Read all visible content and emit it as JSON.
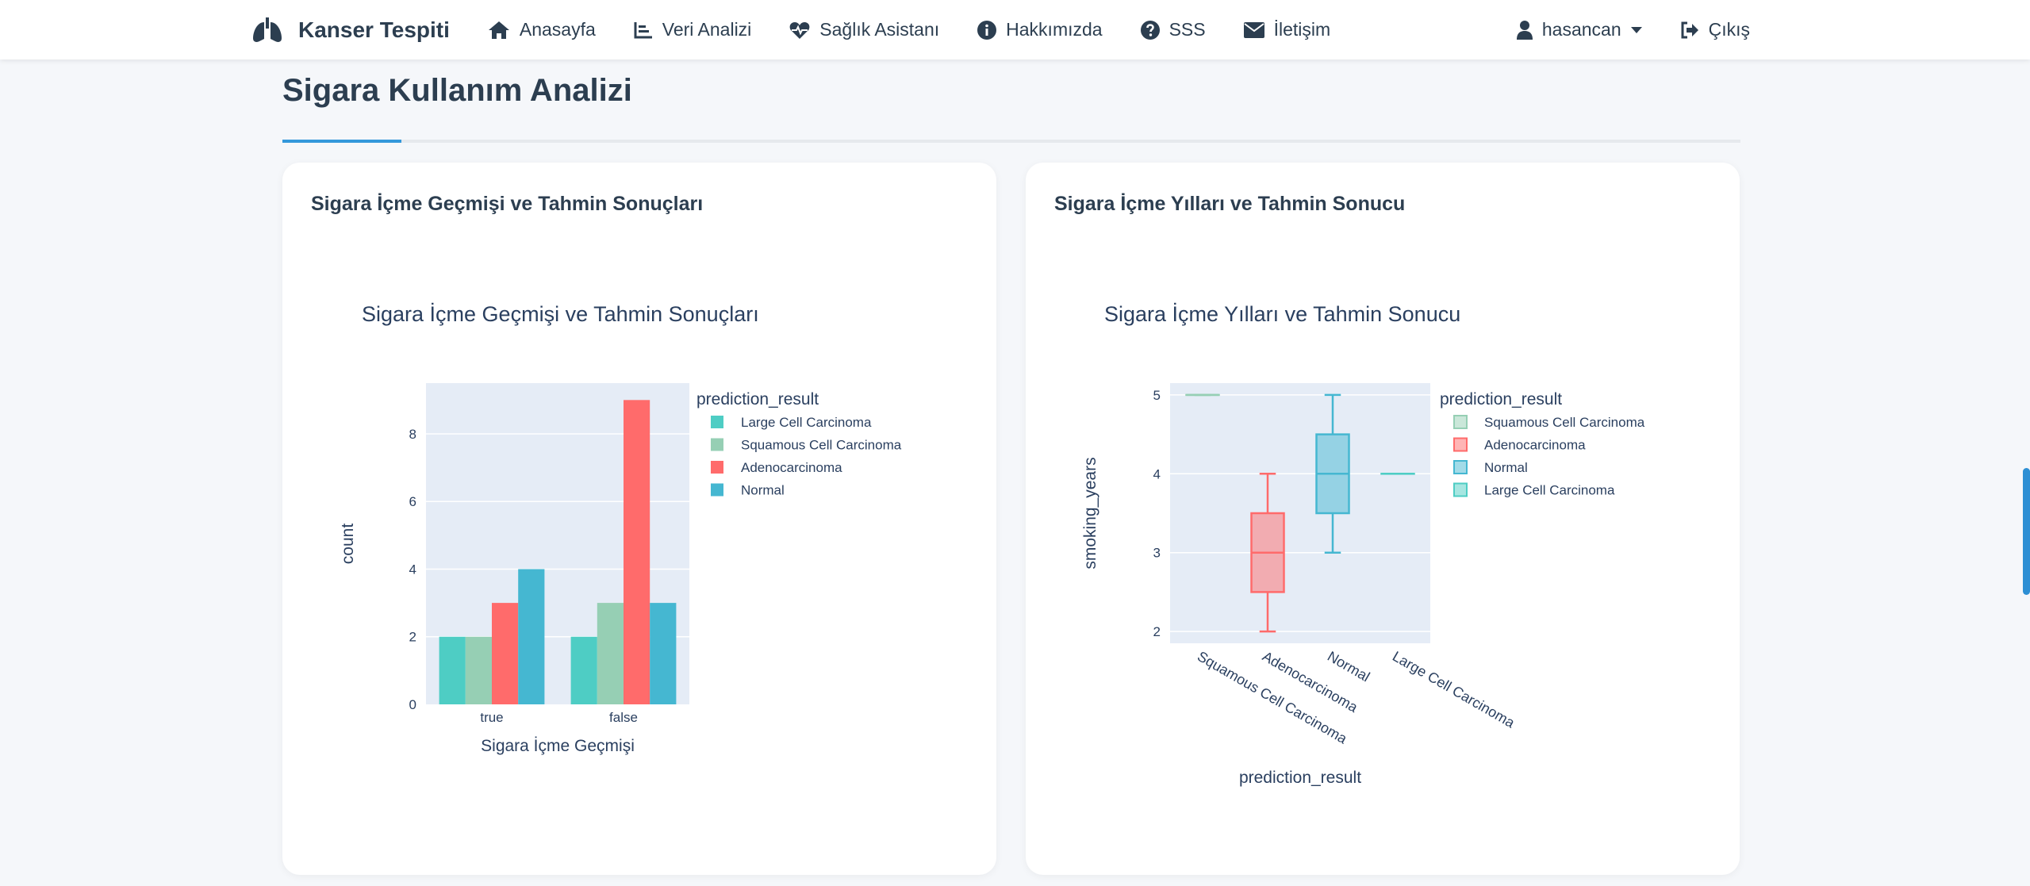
{
  "nav": {
    "brand": "Kanser Tespiti",
    "items": [
      {
        "label": "Anasayfa",
        "icon": "home-icon"
      },
      {
        "label": "Veri Analizi",
        "icon": "chart-line-icon"
      },
      {
        "label": "Sağlık Asistanı",
        "icon": "heart-pulse-icon"
      },
      {
        "label": "Hakkımızda",
        "icon": "info-icon"
      },
      {
        "label": "SSS",
        "icon": "question-icon"
      },
      {
        "label": "İletişim",
        "icon": "envelope-icon"
      }
    ],
    "user": "hasancan",
    "logout": "Çıkış"
  },
  "page": {
    "title": "Sigara Kullanım Analizi"
  },
  "cards": [
    {
      "header": "Sigara İçme Geçmişi ve Tahmin Sonuçları"
    },
    {
      "header": "Sigara İçme Yılları ve Tahmin Sonucu"
    }
  ],
  "chart_data": [
    {
      "type": "bar",
      "title": "Sigara İçme Geçmişi ve Tahmin Sonuçları",
      "xlabel": "Sigara İçme Geçmişi",
      "ylabel": "count",
      "categories": [
        "true",
        "false"
      ],
      "ylim": [
        0,
        9.5
      ],
      "yticks": [
        0,
        2,
        4,
        6,
        8
      ],
      "legend_title": "prediction_result",
      "legend_position": "right",
      "grid": true,
      "series": [
        {
          "name": "Large Cell Carcinoma",
          "values": [
            2,
            2
          ],
          "color": "#4ecdc4"
        },
        {
          "name": "Squamous Cell Carcinoma",
          "values": [
            2,
            3
          ],
          "color": "#96cfb4"
        },
        {
          "name": "Adenocarcinoma",
          "values": [
            3,
            9
          ],
          "color": "#ff6b6b"
        },
        {
          "name": "Normal",
          "values": [
            4,
            3
          ],
          "color": "#45b7d1"
        }
      ]
    },
    {
      "type": "box",
      "title": "Sigara İçme Yılları ve Tahmin Sonucu",
      "xlabel": "prediction_result",
      "ylabel": "smoking_years",
      "categories": [
        "Squamous Cell Carcinoma",
        "Adenocarcinoma",
        "Normal",
        "Large Cell Carcinoma"
      ],
      "ylim": [
        1.85,
        5.15
      ],
      "yticks": [
        2,
        3,
        4,
        5
      ],
      "legend_title": "prediction_result",
      "legend_position": "right",
      "grid": true,
      "series": [
        {
          "name": "Squamous Cell Carcinoma",
          "color": "#96cfb4",
          "min": 5,
          "q1": 5,
          "median": 5,
          "q3": 5,
          "max": 5
        },
        {
          "name": "Adenocarcinoma",
          "color": "#ff6b6b",
          "min": 2,
          "q1": 2.5,
          "median": 3,
          "q3": 3.5,
          "max": 4
        },
        {
          "name": "Normal",
          "color": "#45b7d1",
          "min": 3,
          "q1": 3.5,
          "median": 4,
          "q3": 4.5,
          "max": 5
        },
        {
          "name": "Large Cell Carcinoma",
          "color": "#4ecdc4",
          "min": 4,
          "q1": 4,
          "median": 4,
          "q3": 4,
          "max": 4
        }
      ]
    }
  ]
}
